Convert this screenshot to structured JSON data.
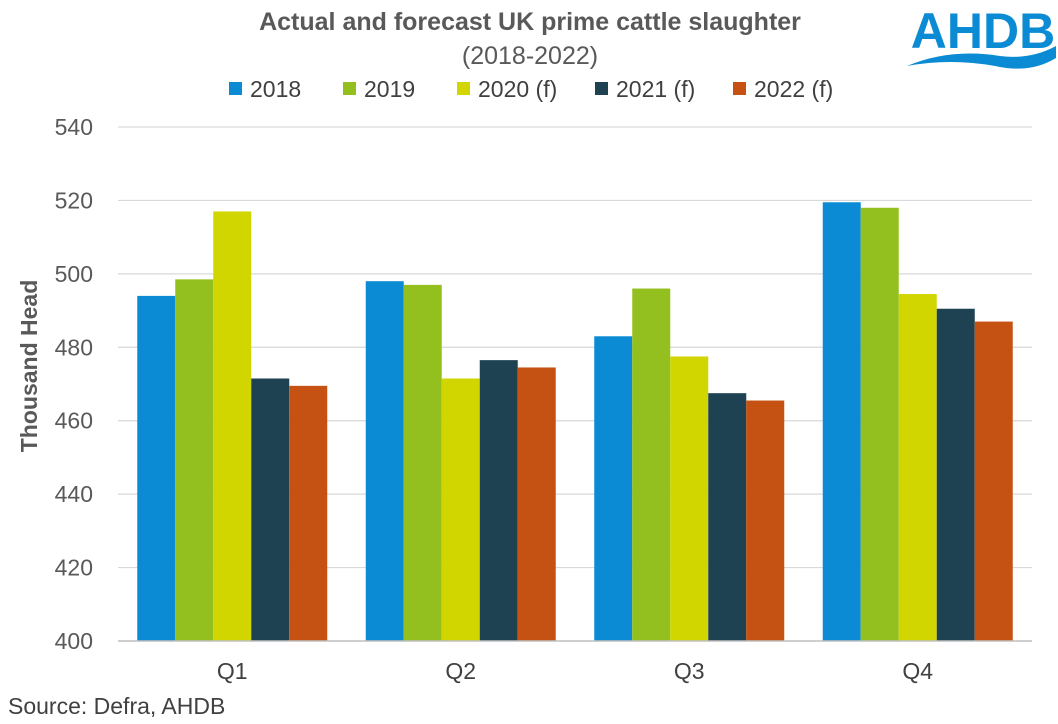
{
  "chart_data": {
    "type": "bar",
    "title": "Actual and forecast UK prime cattle slaughter",
    "subtitle": "(2018-2022)",
    "xlabel": "",
    "ylabel": "Thousand Head",
    "ylim": [
      400,
      540
    ],
    "yticks": [
      400,
      420,
      440,
      460,
      480,
      500,
      520,
      540
    ],
    "grid": true,
    "legend_position": "top",
    "categories": [
      "Q1",
      "Q2",
      "Q3",
      "Q4"
    ],
    "series": [
      {
        "name": "2018",
        "color": "#0b8bd3",
        "values": [
          494,
          498,
          483,
          519.5
        ]
      },
      {
        "name": "2019",
        "color": "#93c01f",
        "values": [
          498.5,
          497,
          496,
          518
        ]
      },
      {
        "name": "2020 (f)",
        "color": "#d1d600",
        "values": [
          517,
          471.5,
          477.5,
          494.5
        ]
      },
      {
        "name": "2021 (f)",
        "color": "#1f4252",
        "values": [
          471.5,
          476.5,
          467.5,
          490.5
        ]
      },
      {
        "name": "2022 (f)",
        "color": "#c55212",
        "values": [
          469.5,
          474.5,
          465.5,
          487
        ]
      }
    ]
  },
  "logo": {
    "text": "AHDB",
    "color": "#0b8bd3"
  },
  "source": "Source: Defra, AHDB"
}
